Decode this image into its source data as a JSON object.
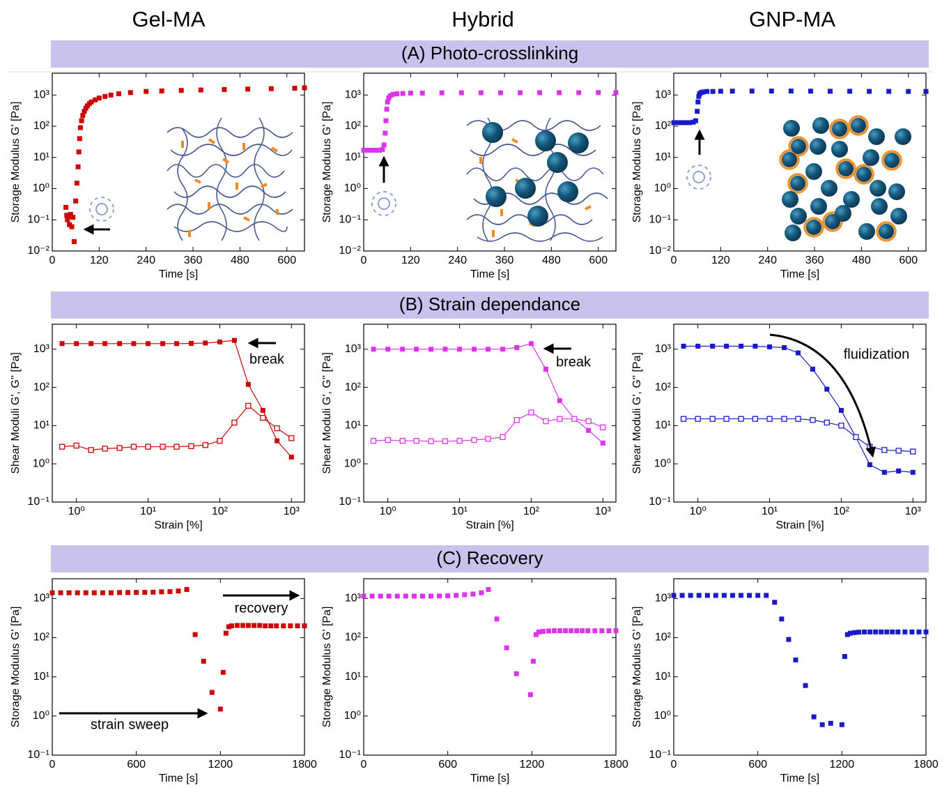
{
  "columns": [
    "Gel-MA",
    "Hybrid",
    "GNP-MA"
  ],
  "rows": [
    "(A) Photo-crosslinking",
    "(B) Strain dependance",
    "(C) Recovery"
  ],
  "chart_data": [
    {
      "type": "scatter",
      "xlabel": "Time [s]",
      "ylabel": "Storage Modulus G' [Pa]",
      "ylog": true,
      "color": "#cc0000",
      "xlim": [
        0,
        645
      ],
      "xticks": [
        0,
        120,
        240,
        360,
        480,
        600
      ],
      "ylim": [
        0.01,
        5000
      ],
      "yticks": [
        {
          "value": 0.01,
          "label": "10⁻²"
        },
        {
          "value": 0.1,
          "label": "10⁻¹"
        },
        {
          "value": 1,
          "label": "10⁰"
        },
        {
          "value": 10,
          "label": "10¹"
        },
        {
          "value": 100,
          "label": "10²"
        },
        {
          "value": 1000,
          "label": "10³"
        }
      ],
      "x": [
        35,
        37,
        39,
        41,
        44,
        47,
        50,
        53,
        56,
        60,
        63,
        66,
        68,
        70,
        72,
        75,
        78,
        82,
        86,
        90,
        95,
        100,
        110,
        120,
        135,
        150,
        170,
        200,
        240,
        280,
        330,
        380,
        440,
        500,
        560,
        620,
        645
      ],
      "values": [
        0.25,
        0.14,
        0.1,
        0.13,
        0.07,
        0.15,
        0.06,
        0.12,
        0.02,
        0.4,
        1.5,
        5,
        15,
        40,
        90,
        150,
        220,
        300,
        380,
        450,
        530,
        600,
        700,
        800,
        900,
        1000,
        1100,
        1200,
        1300,
        1350,
        1400,
        1450,
        1500,
        1550,
        1600,
        1650,
        1700
      ]
    },
    {
      "type": "scatter",
      "xlabel": "Time [s]",
      "ylabel": "Storage Modulus G' [Pa]",
      "ylog": true,
      "color": "#dd33ee",
      "xlim": [
        0,
        645
      ],
      "xticks": [
        0,
        120,
        240,
        360,
        480,
        600
      ],
      "ylim": [
        0.01,
        5000
      ],
      "yticks": [
        {
          "value": 0.01,
          "label": "10⁻²"
        },
        {
          "value": 0.1,
          "label": "10⁻¹"
        },
        {
          "value": 1,
          "label": "10⁰"
        },
        {
          "value": 10,
          "label": "10¹"
        },
        {
          "value": 100,
          "label": "10²"
        },
        {
          "value": 1000,
          "label": "10³"
        }
      ],
      "x": [
        0,
        10,
        20,
        30,
        40,
        48,
        52,
        55,
        57,
        59,
        61,
        64,
        68,
        75,
        85,
        100,
        120,
        150,
        200,
        250,
        300,
        350,
        400,
        450,
        500,
        550,
        600,
        645
      ],
      "values": [
        17,
        17,
        17,
        17,
        17,
        18,
        25,
        60,
        150,
        350,
        600,
        800,
        950,
        1050,
        1100,
        1120,
        1150,
        1150,
        1170,
        1180,
        1180,
        1180,
        1180,
        1190,
        1190,
        1190,
        1200,
        1200
      ]
    },
    {
      "type": "scatter",
      "xlabel": "Time [s]",
      "ylabel": "Storage Modulus G' [Pa]",
      "ylog": true,
      "color": "#1a1acc",
      "xlim": [
        0,
        645
      ],
      "xticks": [
        0,
        120,
        240,
        360,
        480,
        600
      ],
      "ylim": [
        0.01,
        5000
      ],
      "yticks": [
        {
          "value": 0.01,
          "label": "10⁻²"
        },
        {
          "value": 0.1,
          "label": "10⁻¹"
        },
        {
          "value": 1,
          "label": "10⁰"
        },
        {
          "value": 10,
          "label": "10¹"
        },
        {
          "value": 100,
          "label": "10²"
        },
        {
          "value": 1000,
          "label": "10³"
        }
      ],
      "x": [
        0,
        10,
        20,
        30,
        40,
        50,
        56,
        60,
        62,
        64,
        66,
        70,
        75,
        85,
        100,
        120,
        150,
        200,
        250,
        300,
        350,
        400,
        450,
        500,
        550,
        600,
        645
      ],
      "values": [
        130,
        130,
        130,
        130,
        130,
        135,
        150,
        300,
        600,
        900,
        1100,
        1200,
        1250,
        1300,
        1300,
        1320,
        1330,
        1340,
        1340,
        1340,
        1330,
        1320,
        1320,
        1310,
        1310,
        1300,
        1300
      ]
    },
    {
      "type": "line",
      "xlabel": "Strain [%]",
      "ylabel": "Shear Moduli G', G'' [Pa]",
      "xlog": true,
      "ylog": true,
      "xlim": [
        0.46,
        1520
      ],
      "xticks": [
        {
          "value": 1,
          "label": "10⁰"
        },
        {
          "value": 10,
          "label": "10¹"
        },
        {
          "value": 100,
          "label": "10²"
        },
        {
          "value": 1000,
          "label": "10³"
        }
      ],
      "ylim": [
        0.1,
        4500
      ],
      "yticks": [
        {
          "value": 0.1,
          "label": "10⁻¹"
        },
        {
          "value": 1,
          "label": "10⁰"
        },
        {
          "value": 10,
          "label": "10¹"
        },
        {
          "value": 100,
          "label": "10²"
        },
        {
          "value": 1000,
          "label": "10³"
        }
      ],
      "annotations": [
        "break"
      ],
      "x": [
        0.63,
        1,
        1.6,
        2.5,
        4,
        6.3,
        10,
        16,
        25,
        40,
        63,
        100,
        160,
        250,
        400,
        630,
        1000
      ],
      "series": [
        {
          "color": "#cc0000",
          "filled": true,
          "values": [
            1400,
            1400,
            1400,
            1400,
            1400,
            1400,
            1400,
            1400,
            1400,
            1420,
            1450,
            1550,
            1700,
            120,
            25,
            4,
            1.5
          ]
        },
        {
          "color": "#cc0000",
          "filled": false,
          "values": [
            2.8,
            3,
            2.3,
            2.5,
            2.6,
            2.8,
            2.8,
            2.8,
            2.8,
            2.9,
            3.1,
            4,
            12,
            33,
            16,
            8.5,
            4.7
          ]
        }
      ]
    },
    {
      "type": "line",
      "xlabel": "Strain [%]",
      "ylabel": "Shear Moduli G', G'' [Pa]",
      "xlog": true,
      "ylog": true,
      "xlim": [
        0.46,
        1520
      ],
      "xticks": [
        {
          "value": 1,
          "label": "10⁰"
        },
        {
          "value": 10,
          "label": "10¹"
        },
        {
          "value": 100,
          "label": "10²"
        },
        {
          "value": 1000,
          "label": "10³"
        }
      ],
      "ylim": [
        0.1,
        4500
      ],
      "yticks": [
        {
          "value": 0.1,
          "label": "10⁻¹"
        },
        {
          "value": 1,
          "label": "10⁰"
        },
        {
          "value": 10,
          "label": "10¹"
        },
        {
          "value": 100,
          "label": "10²"
        },
        {
          "value": 1000,
          "label": "10³"
        }
      ],
      "annotations": [
        "break"
      ],
      "x": [
        0.63,
        1,
        1.6,
        2.5,
        4,
        6.3,
        10,
        16,
        25,
        40,
        63,
        100,
        160,
        250,
        400,
        630,
        1000
      ],
      "series": [
        {
          "color": "#dd33ee",
          "filled": true,
          "values": [
            1000,
            1000,
            1000,
            1000,
            1000,
            1000,
            1000,
            1000,
            1000,
            1000,
            1100,
            1400,
            300,
            45,
            15,
            7.5,
            3.5
          ]
        },
        {
          "color": "#dd33ee",
          "filled": false,
          "values": [
            4,
            4.2,
            4,
            4,
            3.9,
            3.9,
            4,
            4.2,
            4.5,
            5,
            14,
            22,
            13,
            15,
            15,
            13,
            9
          ]
        }
      ]
    },
    {
      "type": "line",
      "xlabel": "Strain [%]",
      "ylabel": "Shear Moduli G', G'' [Pa]",
      "xlog": true,
      "ylog": true,
      "xlim": [
        0.46,
        1520
      ],
      "xticks": [
        {
          "value": 1,
          "label": "10⁰"
        },
        {
          "value": 10,
          "label": "10¹"
        },
        {
          "value": 100,
          "label": "10²"
        },
        {
          "value": 1000,
          "label": "10³"
        }
      ],
      "ylim": [
        0.1,
        4500
      ],
      "yticks": [
        {
          "value": 0.1,
          "label": "10⁻¹"
        },
        {
          "value": 1,
          "label": "10⁰"
        },
        {
          "value": 10,
          "label": "10¹"
        },
        {
          "value": 100,
          "label": "10²"
        },
        {
          "value": 1000,
          "label": "10³"
        }
      ],
      "annotations": [
        "fluidization"
      ],
      "x": [
        0.63,
        1,
        1.6,
        2.5,
        4,
        6.3,
        10,
        16,
        25,
        40,
        63,
        100,
        160,
        250,
        400,
        630,
        1000
      ],
      "series": [
        {
          "color": "#1a1acc",
          "filled": true,
          "values": [
            1200,
            1200,
            1200,
            1200,
            1200,
            1200,
            1150,
            1100,
            800,
            300,
            90,
            25,
            5,
            0.95,
            0.6,
            0.65,
            0.6
          ]
        },
        {
          "color": "#1a1acc",
          "filled": false,
          "values": [
            15,
            15,
            15,
            15,
            15,
            15,
            15,
            15,
            15,
            14,
            12,
            10,
            5,
            2.8,
            2.3,
            2.2,
            2.1
          ]
        }
      ]
    },
    {
      "type": "scatter",
      "xlabel": "Time [s]",
      "ylabel": "Storage Modulus G' [Pa]",
      "ylog": true,
      "color": "#cc0000",
      "xlim": [
        0,
        1800
      ],
      "xticks": [
        0,
        600,
        1200,
        1800
      ],
      "ylim": [
        0.1,
        3200
      ],
      "yticks": [
        {
          "value": 0.1,
          "label": "10⁻¹"
        },
        {
          "value": 1,
          "label": "10⁰"
        },
        {
          "value": 10,
          "label": "10¹"
        },
        {
          "value": 100,
          "label": "10²"
        },
        {
          "value": 1000,
          "label": "10³"
        }
      ],
      "annotations": [
        "recovery",
        "strain sweep"
      ],
      "x": [
        0,
        60,
        120,
        180,
        240,
        300,
        360,
        420,
        480,
        540,
        600,
        660,
        720,
        780,
        840,
        900,
        960,
        1020,
        1080,
        1140,
        1200,
        1220,
        1240,
        1260,
        1280,
        1320,
        1360,
        1400,
        1440,
        1480,
        1520,
        1560,
        1600,
        1650,
        1700,
        1750,
        1800
      ],
      "values": [
        1400,
        1400,
        1400,
        1400,
        1400,
        1400,
        1400,
        1400,
        1420,
        1420,
        1430,
        1440,
        1450,
        1480,
        1500,
        1550,
        1700,
        120,
        25,
        4,
        1.5,
        13,
        130,
        190,
        200,
        205,
        205,
        205,
        205,
        205,
        200,
        200,
        200,
        200,
        200,
        200,
        200
      ]
    },
    {
      "type": "scatter",
      "xlabel": "Time [s]",
      "ylabel": "Storage Modulus G' [Pa]",
      "ylog": true,
      "color": "#dd33ee",
      "xlim": [
        0,
        1800
      ],
      "xticks": [
        0,
        600,
        1200,
        1800
      ],
      "ylim": [
        0.1,
        3200
      ],
      "yticks": [
        {
          "value": 0.1,
          "label": "10⁻¹"
        },
        {
          "value": 1,
          "label": "10⁰"
        },
        {
          "value": 10,
          "label": "10¹"
        },
        {
          "value": 100,
          "label": "10²"
        },
        {
          "value": 1000,
          "label": "10³"
        }
      ],
      "x": [
        0,
        60,
        120,
        180,
        240,
        300,
        360,
        420,
        480,
        540,
        600,
        660,
        720,
        780,
        840,
        890,
        950,
        1020,
        1090,
        1190,
        1210,
        1230,
        1250,
        1280,
        1320,
        1360,
        1400,
        1440,
        1480,
        1520,
        1560,
        1600,
        1650,
        1700,
        1750,
        1800
      ],
      "values": [
        1150,
        1150,
        1150,
        1150,
        1150,
        1150,
        1150,
        1150,
        1150,
        1160,
        1170,
        1200,
        1250,
        1300,
        1400,
        1700,
        300,
        55,
        12,
        3.5,
        25,
        120,
        140,
        145,
        148,
        150,
        150,
        150,
        150,
        150,
        150,
        150,
        150,
        150,
        150,
        150
      ]
    },
    {
      "type": "scatter",
      "xlabel": "Time [s]",
      "ylabel": "Storage Modulus G' [Pa]",
      "ylog": true,
      "color": "#1a1acc",
      "xlim": [
        0,
        1800
      ],
      "xticks": [
        0,
        600,
        1200,
        1800
      ],
      "ylim": [
        0.1,
        3200
      ],
      "yticks": [
        {
          "value": 0.1,
          "label": "10⁻¹"
        },
        {
          "value": 1,
          "label": "10⁰"
        },
        {
          "value": 10,
          "label": "10¹"
        },
        {
          "value": 100,
          "label": "10²"
        },
        {
          "value": 1000,
          "label": "10³"
        }
      ],
      "x": [
        0,
        60,
        120,
        180,
        240,
        300,
        360,
        420,
        480,
        540,
        600,
        660,
        720,
        770,
        820,
        870,
        940,
        1000,
        1060,
        1120,
        1200,
        1220,
        1240,
        1260,
        1290,
        1320,
        1360,
        1400,
        1440,
        1480,
        1520,
        1560,
        1600,
        1650,
        1700,
        1750,
        1800
      ],
      "values": [
        1200,
        1200,
        1200,
        1200,
        1200,
        1200,
        1200,
        1200,
        1200,
        1200,
        1200,
        1200,
        800,
        300,
        90,
        27,
        6,
        0.95,
        0.6,
        0.65,
        0.6,
        33,
        120,
        130,
        135,
        138,
        140,
        140,
        140,
        140,
        140,
        140,
        140,
        140,
        140,
        140,
        140
      ]
    }
  ]
}
